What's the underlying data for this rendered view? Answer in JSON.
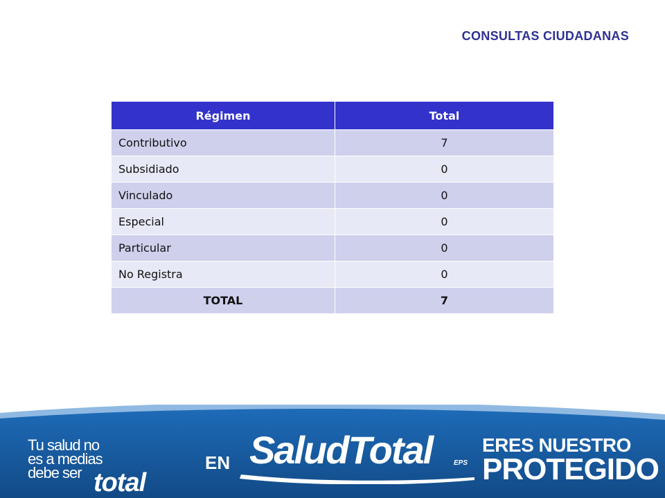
{
  "title": "CONSULTAS CIUDADANAS",
  "table": {
    "headers": [
      "Régimen",
      "Total"
    ],
    "rows": [
      {
        "label": "Contributivo",
        "value": "7"
      },
      {
        "label": "Subsidiado",
        "value": "0"
      },
      {
        "label": "Vinculado",
        "value": "0"
      },
      {
        "label": "Especial",
        "value": "0"
      },
      {
        "label": "Particular",
        "value": "0"
      },
      {
        "label": "No Registra",
        "value": "0"
      }
    ],
    "total": {
      "label": "TOTAL",
      "value": "7"
    }
  },
  "footer": {
    "slogan_lines": [
      "Tu salud no",
      "es a medias",
      "debe ser"
    ],
    "slogan_word": "total",
    "en": "EN",
    "brand": "SaludTotal",
    "brand_suffix": "EPS",
    "tagline_1": "ERES NUESTRO",
    "tagline_2": "PROTEGIDO"
  },
  "colors": {
    "title": "#2e3192",
    "header_bg": "#3333cc",
    "row_odd": "#cfd0ec",
    "row_even": "#e8e9f6",
    "footer_blue": "#1b5fa8"
  }
}
